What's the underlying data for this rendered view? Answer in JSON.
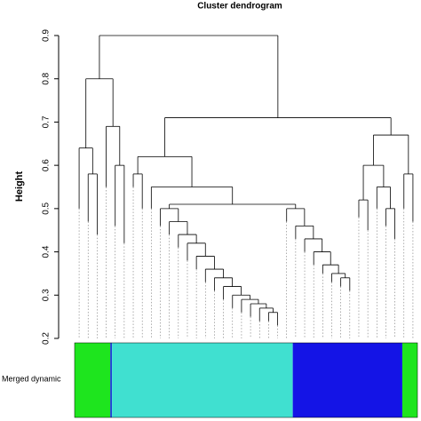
{
  "chart_data": {
    "type": "dendrogram",
    "title": "Cluster dendrogram",
    "y_label": "Height",
    "ylim": [
      0.2,
      0.9
    ],
    "yticks": [
      0.2,
      0.3,
      0.4,
      0.5,
      0.6,
      0.7,
      0.8,
      0.9
    ],
    "tree": {
      "height": 0.9,
      "children": [
        {
          "height": 0.8,
          "children": [
            {
              "height": 0.64,
              "children": [
                {
                  "height": 0.5
                },
                {
                  "height": 0.58,
                  "children": [
                    {
                      "height": 0.47
                    },
                    {
                      "height": 0.44
                    }
                  ]
                }
              ]
            },
            {
              "height": 0.69,
              "children": [
                {
                  "height": 0.55
                },
                {
                  "height": 0.6,
                  "children": [
                    {
                      "height": 0.46
                    },
                    {
                      "height": 0.42
                    }
                  ]
                }
              ]
            }
          ]
        },
        {
          "height": 0.71,
          "children": [
            {
              "height": 0.62,
              "children": [
                {
                  "height": 0.58,
                  "children": [
                    {
                      "height": 0.55
                    },
                    {
                      "height": 0.5
                    }
                  ]
                },
                {
                  "height": 0.55,
                  "children": [
                    {
                      "height": 0.5
                    },
                    {
                      "height": 0.51,
                      "children": [
                        {
                          "height": 0.5,
                          "children": [
                            {
                              "height": 0.46
                            },
                            {
                              "height": 0.47,
                              "children": [
                                {
                                  "height": 0.44
                                },
                                {
                                  "height": 0.44,
                                  "children": [
                                    {
                                      "height": 0.41
                                    },
                                    {
                                      "height": 0.42,
                                      "children": [
                                        {
                                          "height": 0.38
                                        },
                                        {
                                          "height": 0.39,
                                          "children": [
                                            {
                                              "height": 0.36
                                            },
                                            {
                                              "height": 0.36,
                                              "children": [
                                                {
                                                  "height": 0.33
                                                },
                                                {
                                                  "height": 0.34,
                                                  "children": [
                                                    {
                                                      "height": 0.31
                                                    },
                                                    {
                                                      "height": 0.32,
                                                      "children": [
                                                        {
                                                          "height": 0.29
                                                        },
                                                        {
                                                          "height": 0.3,
                                                          "children": [
                                                            {
                                                              "height": 0.27
                                                            },
                                                            {
                                                              "height": 0.29,
                                                              "children": [
                                                                {
                                                                  "height": 0.26
                                                                },
                                                                {
                                                                  "height": 0.28,
                                                                  "children": [
                                                                    {
                                                                      "height": 0.25
                                                                    },
                                                                    {
                                                                      "height": 0.27,
                                                                      "children": [
                                                                        {
                                                                          "height": 0.24
                                                                        },
                                                                        {
                                                                          "height": 0.26,
                                                                          "children": [
                                                                            {
                                                                              "height": 0.24
                                                                            },
                                                                            {
                                                                              "height": 0.23
                                                                            }
                                                                          ]
                                                                        }
                                                                      ]
                                                                    }
                                                                  ]
                                                                }
                                                              ]
                                                            }
                                                          ]
                                                        }
                                                      ]
                                                    }
                                                  ]
                                                }
                                              ]
                                            }
                                          ]
                                        }
                                      ]
                                    }
                                  ]
                                }
                              ]
                            }
                          ]
                        },
                        {
                          "height": 0.5,
                          "children": [
                            {
                              "height": 0.47
                            },
                            {
                              "height": 0.46,
                              "children": [
                                {
                                  "height": 0.43
                                },
                                {
                                  "height": 0.43,
                                  "children": [
                                    {
                                      "height": 0.4
                                    },
                                    {
                                      "height": 0.4,
                                      "children": [
                                        {
                                          "height": 0.37
                                        },
                                        {
                                          "height": 0.37,
                                          "children": [
                                            {
                                              "height": 0.35
                                            },
                                            {
                                              "height": 0.35,
                                              "children": [
                                                {
                                                  "height": 0.33
                                                },
                                                {
                                                  "height": 0.34,
                                                  "children": [
                                                    {
                                                      "height": 0.32
                                                    },
                                                    {
                                                      "height": 0.31
                                                    }
                                                  ]
                                                }
                                              ]
                                            }
                                          ]
                                        }
                                      ]
                                    }
                                  ]
                                }
                              ]
                            }
                          ]
                        }
                      ]
                    }
                  ]
                }
              ]
            },
            {
              "height": 0.67,
              "children": [
                {
                  "height": 0.6,
                  "children": [
                    {
                      "height": 0.52,
                      "children": [
                        {
                          "height": 0.48
                        },
                        {
                          "height": 0.45
                        }
                      ]
                    },
                    {
                      "height": 0.55,
                      "children": [
                        {
                          "height": 0.5
                        },
                        {
                          "height": 0.5,
                          "children": [
                            {
                              "height": 0.46
                            },
                            {
                              "height": 0.43
                            }
                          ]
                        }
                      ]
                    }
                  ]
                },
                {
                  "height": 0.58,
                  "children": [
                    {
                      "height": 0.5
                    },
                    {
                      "height": 0.47
                    }
                  ]
                }
              ]
            }
          ]
        }
      ]
    },
    "color_bar": {
      "label": "Merged dynamic",
      "modules": [
        {
          "color": "#1ee51e",
          "size": 40
        },
        {
          "color": "#1f3fd6",
          "size": 2
        },
        {
          "color": "#40e0d0",
          "size": 203
        },
        {
          "color": "#1414e6",
          "size": 123
        },
        {
          "color": "#1ee51e",
          "size": 17
        }
      ]
    }
  }
}
